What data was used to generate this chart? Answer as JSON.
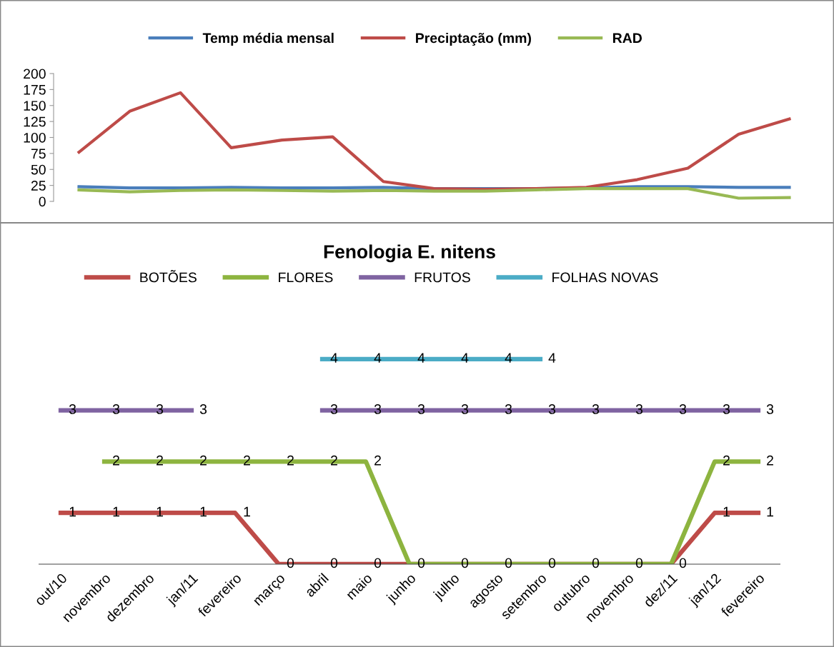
{
  "chart_data": [
    {
      "type": "line",
      "categories": [
        null,
        null,
        null,
        null,
        null,
        null,
        null,
        null,
        null,
        null,
        null,
        null,
        null,
        null,
        null
      ],
      "ylim": [
        0,
        200
      ],
      "yticks": [
        0,
        25,
        50,
        75,
        100,
        125,
        150,
        175,
        200
      ],
      "tick_labels": "y",
      "legend": "top",
      "grid": false,
      "marker": "none",
      "series": [
        {
          "name": "Temp média mensal",
          "color": "#4a7ebb",
          "values": [
            23,
            21,
            21,
            22,
            21,
            21,
            22,
            20,
            20,
            20,
            21,
            23,
            23,
            22,
            22
          ]
        },
        {
          "name": "Preciptação (mm)",
          "color": "#be4b48",
          "values": [
            77,
            141,
            170,
            84,
            96,
            101,
            31,
            20,
            19,
            20,
            22,
            34,
            52,
            105,
            129
          ]
        },
        {
          "name": "RAD",
          "color": "#98b954",
          "values": [
            18,
            15,
            17,
            18,
            17,
            16,
            17,
            16,
            16,
            18,
            20,
            20,
            20,
            5,
            6
          ]
        }
      ]
    },
    {
      "type": "line",
      "title": "Fenologia E. nitens",
      "categories": [
        "out/10",
        "novembro",
        "dezembro",
        "jan/11",
        "fevereiro",
        "março",
        "abril",
        "maio",
        "junho",
        "julho",
        "agosto",
        "setembro",
        "outubro",
        "novembro",
        "dez/11",
        "jan/12",
        "fevereiro"
      ],
      "tick_labels": "x",
      "legend": "top",
      "grid": false,
      "marker": "none",
      "data_labels": true,
      "series": [
        {
          "name": "BOTÕES",
          "color": "#be4b48",
          "values": [
            1,
            1,
            1,
            1,
            1,
            0,
            0,
            0,
            0,
            0,
            0,
            0,
            0,
            0,
            0,
            1,
            1
          ],
          "value_labels": [
            "1",
            "1",
            "1",
            "1",
            "1",
            "0",
            "0",
            "0",
            null,
            null,
            null,
            null,
            null,
            null,
            null,
            "1",
            "1"
          ]
        },
        {
          "name": "FLORES",
          "color": "#8db43f",
          "values": [
            null,
            2,
            2,
            2,
            2,
            2,
            2,
            2,
            0,
            0,
            0,
            0,
            0,
            0,
            0,
            2,
            2
          ]
        },
        {
          "name": "FRUTOS",
          "color": "#7f63a1",
          "values": [
            3,
            3,
            3,
            3,
            null,
            null,
            3,
            3,
            3,
            3,
            3,
            3,
            3,
            3,
            3,
            3,
            3
          ]
        },
        {
          "name": "FOLHAS NOVAS",
          "color": "#4bacc6",
          "values": [
            null,
            null,
            null,
            null,
            null,
            null,
            4,
            4,
            4,
            4,
            4,
            4,
            null,
            null,
            null,
            null,
            null
          ]
        }
      ]
    }
  ]
}
